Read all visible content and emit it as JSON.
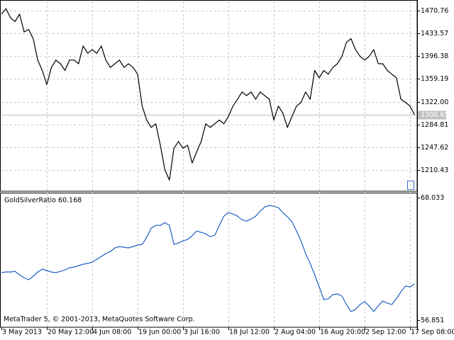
{
  "chart_data": [
    {
      "type": "line",
      "color": "#000000",
      "ygrid": true,
      "xgrid": true,
      "ylim": [
        1175.8,
        1485.8
      ],
      "yticks": [
        1470.76,
        1433.57,
        1396.38,
        1359.19,
        {
          "value": 1322,
          "label": "1322.00"
        },
        1284.81,
        1247.62,
        1210.43
      ],
      "last_price": 1300.65,
      "values": [
        1465,
        1474,
        1459,
        1453,
        1465,
        1436,
        1440,
        1425,
        1390,
        1373,
        1350,
        1378,
        1390,
        1384,
        1373,
        1390,
        1390,
        1384,
        1413,
        1401,
        1407,
        1401,
        1413,
        1390,
        1378,
        1384,
        1390,
        1378,
        1384,
        1378,
        1367,
        1315,
        1292,
        1280,
        1286,
        1251,
        1211,
        1194,
        1246,
        1257,
        1246,
        1251,
        1222,
        1240,
        1257,
        1286,
        1280,
        1286,
        1292,
        1286,
        1298,
        1315,
        1326,
        1338,
        1332,
        1338,
        1326,
        1338,
        1332,
        1326,
        1292,
        1315,
        1303,
        1280,
        1298,
        1315,
        1321,
        1338,
        1326,
        1373,
        1361,
        1373,
        1367,
        1378,
        1384,
        1396,
        1419,
        1425,
        1407,
        1396,
        1390,
        1396,
        1407,
        1384,
        1384,
        1373,
        1367,
        1361,
        1326,
        1321,
        1315,
        1300.65
      ]
    },
    {
      "type": "line",
      "color": "#1f5fc4",
      "ygrid": false,
      "xgrid": true,
      "title": "GoldSilverRatio 60.168",
      "annotation": "MetaTrader 5, © 2001-2013, MetaQuotes Software Corp.",
      "ylim": [
        56.2,
        68.5
      ],
      "yticks": [
        68.033,
        56.851
      ],
      "categories": [
        "3 May 2013",
        null,
        null,
        null,
        null,
        null,
        null,
        null,
        null,
        null,
        "20 May 12:00",
        null,
        null,
        null,
        null,
        null,
        null,
        null,
        null,
        null,
        "4 Jun 08:00",
        null,
        null,
        null,
        null,
        null,
        null,
        null,
        null,
        null,
        "19 Jun 00:00",
        null,
        null,
        null,
        null,
        null,
        null,
        null,
        null,
        null,
        "3 Jul 16:00",
        null,
        null,
        null,
        null,
        null,
        null,
        null,
        null,
        null,
        "18 Jul 12:00",
        null,
        null,
        null,
        null,
        null,
        null,
        null,
        null,
        null,
        "2 Aug 04:00",
        null,
        null,
        null,
        null,
        null,
        null,
        null,
        null,
        null,
        "16 Aug 20:00",
        null,
        null,
        null,
        null,
        null,
        null,
        null,
        null,
        null,
        "2 Sep 12:00",
        null,
        null,
        null,
        null,
        null,
        null,
        null,
        null,
        null,
        "17 Sep 08:00",
        null
      ],
      "values": [
        61.19,
        61.25,
        61.25,
        61.31,
        60.99,
        60.73,
        60.54,
        60.86,
        61.25,
        61.51,
        61.38,
        61.25,
        61.19,
        61.31,
        61.44,
        61.64,
        61.7,
        61.83,
        61.96,
        62.03,
        62.15,
        62.41,
        62.67,
        62.93,
        63.12,
        63.45,
        63.58,
        63.51,
        63.45,
        63.58,
        63.71,
        63.77,
        64.42,
        65.26,
        65.51,
        65.51,
        65.77,
        65.51,
        63.77,
        63.9,
        64.09,
        64.22,
        64.55,
        65.0,
        64.87,
        64.74,
        64.48,
        64.61,
        65.51,
        66.35,
        66.68,
        66.55,
        66.35,
        66.03,
        65.9,
        66.1,
        66.35,
        66.81,
        67.19,
        67.32,
        67.26,
        67.13,
        66.68,
        66.29,
        65.84,
        65.0,
        64.09,
        62.93,
        62.03,
        60.99,
        59.89,
        58.73,
        58.8,
        59.18,
        59.25,
        59.05,
        58.28,
        57.63,
        57.83,
        58.28,
        58.54,
        58.15,
        57.63,
        58.15,
        58.6,
        58.41,
        58.28,
        58.8,
        59.44,
        59.96,
        59.89,
        60.168
      ]
    }
  ]
}
